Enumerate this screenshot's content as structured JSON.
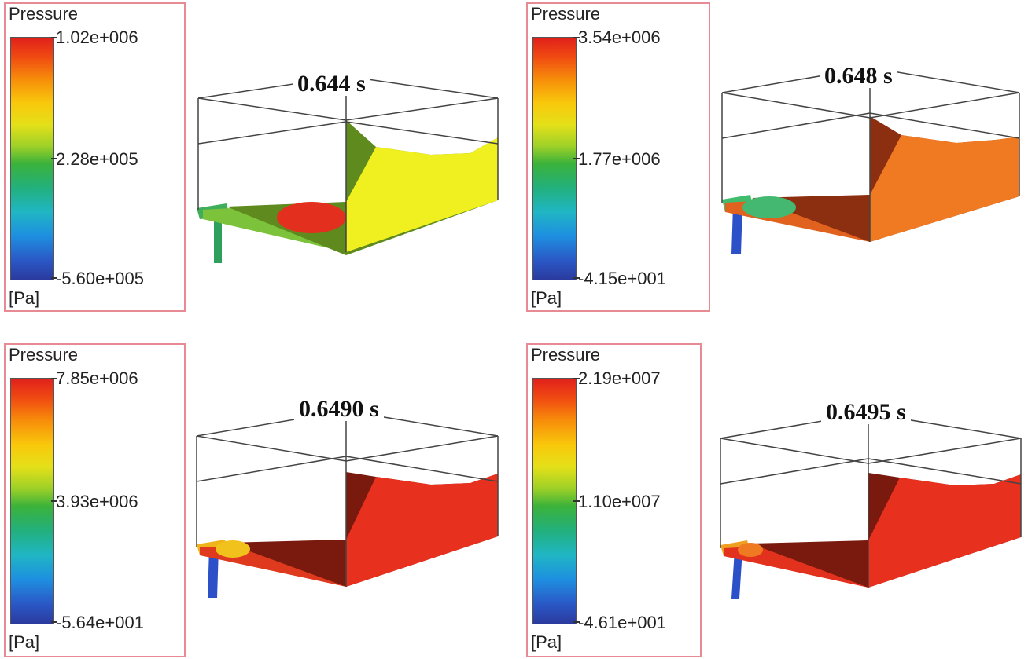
{
  "legend_title": "Pressure",
  "legend_unit": "[Pa]",
  "panels": [
    {
      "time": "0.644 s",
      "max": "1.02e+006",
      "mid": "2.28e+005",
      "min": "-5.60e+005",
      "colors": {
        "surface": "#5f8a1e",
        "wall": "#f0f020",
        "floor": "#7cc23a",
        "hotspot": "#e3301e",
        "inlet": "#3fae5a",
        "pipe": "#2ea05e"
      }
    },
    {
      "time": "0.648 s",
      "max": "3.54e+006",
      "mid": "1.77e+006",
      "min": "-4.15e+001",
      "colors": {
        "surface": "#8c2e10",
        "wall": "#f07a22",
        "floor": "#e0621e",
        "hotspot": "#44b870",
        "inlet": "#3fbc6c",
        "pipe": "#2c50c8"
      }
    },
    {
      "time": "0.6490 s",
      "max": "7.85e+006",
      "mid": "3.93e+006",
      "min": "-5.64e+001",
      "colors": {
        "surface": "#7a1a0e",
        "wall": "#e8301e",
        "floor": "#e03a1e",
        "hotspot": "#f2c21c",
        "inlet": "#f0b41a",
        "pipe": "#2c50c8"
      }
    },
    {
      "time": "0.6495 s",
      "max": "2.19e+007",
      "mid": "1.10e+007",
      "min": "-4.61e+001",
      "colors": {
        "surface": "#7a1a0e",
        "wall": "#e8301e",
        "floor": "#e2321e",
        "hotspot": "#f07a22",
        "inlet": "#f0a020",
        "pipe": "#2c50c8"
      }
    }
  ]
}
